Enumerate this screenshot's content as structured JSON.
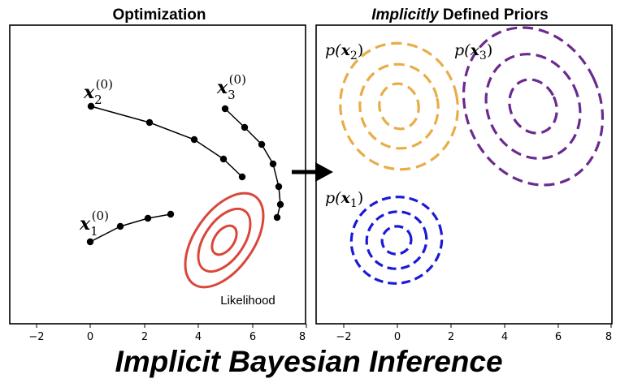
{
  "titles": {
    "left": "Optimization",
    "right_italic": "Implicitly",
    "right_rest": " Defined Priors"
  },
  "footer": "Implicit Bayesian Inference",
  "likelihood_label": "Likelihood",
  "x_ticks": [
    "−2",
    "0",
    "2",
    "4",
    "6",
    "8"
  ],
  "labels": {
    "x2_start": {
      "base": "x",
      "sub": "2",
      "sup": "(0)"
    },
    "x3_start": {
      "base": "x",
      "sub": "3",
      "sup": "(0)"
    },
    "x1_start": {
      "base": "x",
      "sub": "1",
      "sup": "(0)"
    },
    "p_x2": {
      "pre": "p(",
      "base": "x",
      "sub": "2",
      "post": ")"
    },
    "p_x3": {
      "pre": "p(",
      "base": "x",
      "sub": "3",
      "post": ")"
    },
    "p_x1": {
      "pre": "p(",
      "base": "x",
      "sub": "1",
      "post": ")"
    }
  },
  "colors": {
    "likelihood": "#d9473a",
    "prior_x2": "#e8ad47",
    "prior_x3": "#6b2a8e",
    "prior_x1": "#1a1ad6",
    "trajectory": "#000000"
  }
}
